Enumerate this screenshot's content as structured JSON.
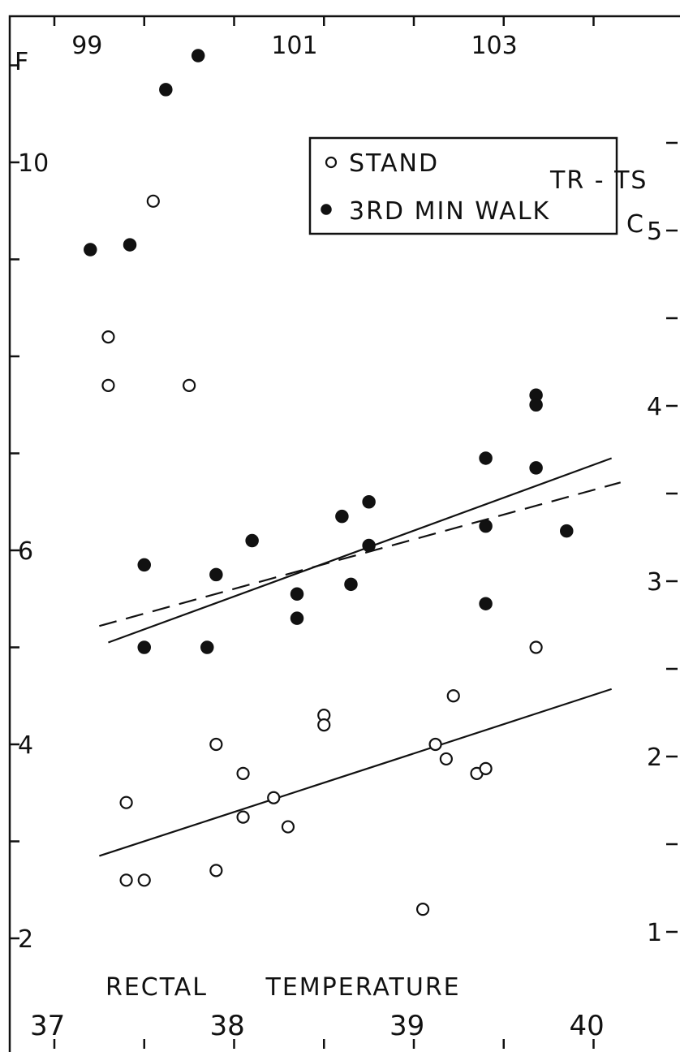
{
  "chart_data": {
    "type": "scatter",
    "xlabel": "RECTAL TEMPERATURE",
    "x_units_bottom": "C",
    "x_units_top": "F",
    "xlim": [
      36.85,
      40.45
    ],
    "x_ticks_bottom": [
      37,
      37.5,
      38,
      38.5,
      39,
      39.5,
      40
    ],
    "x_tick_labels_bottom": [
      "37",
      "38",
      "39",
      "40"
    ],
    "x_tick_labels_top": [
      "99",
      "101",
      "103"
    ],
    "y_left_units": "F",
    "ylim_left": [
      1.4,
      11.3
    ],
    "y_left_tick_labels": [
      "2",
      "4",
      "6",
      "10"
    ],
    "y_right_label": "TR - TS",
    "y_right_units": "C",
    "y_right_tick_labels": [
      "1",
      "2",
      "3",
      "4",
      "5"
    ],
    "grid": false,
    "legend": {
      "placement": "top-center",
      "entries": [
        {
          "label": "STAND",
          "marker": "open-circle"
        },
        {
          "label": "3RD MIN WALK",
          "marker": "filled-circle"
        }
      ]
    },
    "series": [
      {
        "name": "STAND",
        "marker": "open",
        "points": [
          [
            37.3,
            8.2
          ],
          [
            37.3,
            7.7
          ],
          [
            37.55,
            9.6
          ],
          [
            37.75,
            7.7
          ],
          [
            37.4,
            3.4
          ],
          [
            37.4,
            2.6
          ],
          [
            37.5,
            2.6
          ],
          [
            37.9,
            4.0
          ],
          [
            37.9,
            2.7
          ],
          [
            38.05,
            3.7
          ],
          [
            38.05,
            3.25
          ],
          [
            38.22,
            3.45
          ],
          [
            38.3,
            3.15
          ],
          [
            38.5,
            4.3
          ],
          [
            38.5,
            4.2
          ],
          [
            39.05,
            2.3
          ],
          [
            39.12,
            4.0
          ],
          [
            39.18,
            3.85
          ],
          [
            39.22,
            4.5
          ],
          [
            39.35,
            3.7
          ],
          [
            39.4,
            3.75
          ],
          [
            39.68,
            5.0
          ]
        ],
        "fit": {
          "x": [
            37.25,
            40.1
          ],
          "y": [
            2.85,
            4.57
          ]
        }
      },
      {
        "name": "3RD MIN WALK",
        "marker": "filled",
        "points": [
          [
            37.2,
            9.1
          ],
          [
            37.42,
            9.15
          ],
          [
            37.62,
            10.75
          ],
          [
            37.8,
            11.1
          ],
          [
            37.5,
            5.85
          ],
          [
            37.5,
            5.0
          ],
          [
            37.85,
            5.0
          ],
          [
            37.9,
            5.75
          ],
          [
            38.1,
            6.1
          ],
          [
            38.35,
            5.55
          ],
          [
            38.35,
            5.3
          ],
          [
            38.6,
            6.35
          ],
          [
            38.65,
            5.65
          ],
          [
            38.75,
            6.5
          ],
          [
            38.75,
            6.05
          ],
          [
            39.4,
            6.95
          ],
          [
            39.4,
            6.25
          ],
          [
            39.4,
            5.45
          ],
          [
            39.68,
            7.6
          ],
          [
            39.68,
            7.5
          ],
          [
            39.68,
            6.85
          ],
          [
            39.85,
            6.2
          ]
        ],
        "fit": {
          "x": [
            37.3,
            40.1
          ],
          "y": [
            5.05,
            6.95
          ]
        },
        "fit_dashed": {
          "x": [
            37.25,
            40.15
          ],
          "y": [
            5.22,
            6.7
          ]
        }
      }
    ]
  }
}
